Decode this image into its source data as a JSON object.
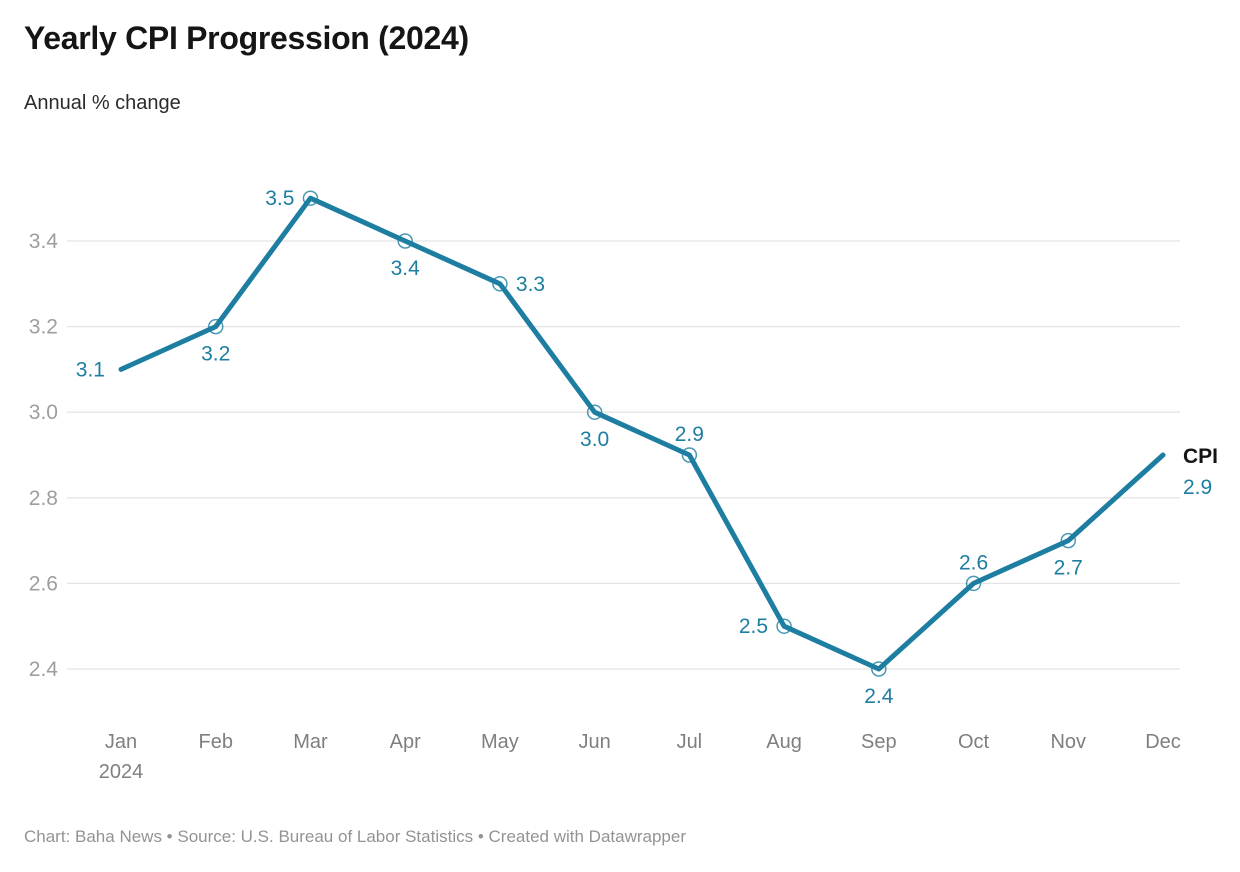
{
  "header": {
    "title": "Yearly CPI Progression (2024)",
    "subtitle": "Annual % change"
  },
  "footer": {
    "text": "Chart: Baha News • Source: U.S. Bureau of Labor Statistics • Created with Datawrapper"
  },
  "colors": {
    "background": "#ffffff",
    "title": "#151515",
    "subtitle": "#2b2b2b",
    "footer": "#939393",
    "line": "#1d7ea1",
    "point_label": "#1d7ea1",
    "grid": "#e4e4e4",
    "y_tick_text": "#9e9e9e",
    "x_tick_text": "#7f7f7f",
    "series_label_text": "#141414"
  },
  "chart_data": {
    "type": "line",
    "title": "Yearly CPI Progression (2024)",
    "subtitle": "Annual % change",
    "categories": [
      "Jan",
      "Feb",
      "Mar",
      "Apr",
      "May",
      "Jun",
      "Jul",
      "Aug",
      "Sep",
      "Oct",
      "Nov",
      "Dec"
    ],
    "first_tick_year": "2024",
    "series": [
      {
        "name": "CPI",
        "values": [
          3.1,
          3.2,
          3.5,
          3.4,
          3.3,
          3.0,
          2.9,
          2.5,
          2.4,
          2.6,
          2.7,
          2.9
        ]
      }
    ],
    "point_labels": [
      "3.1",
      "3.2",
      "3.5",
      "3.4",
      "3.3",
      "3.0",
      "2.9",
      "2.5",
      "2.4",
      "2.6",
      "2.7",
      "2.9"
    ],
    "point_label_placements": [
      "left",
      "below",
      "left",
      "below",
      "right",
      "below",
      "above",
      "left",
      "below",
      "above",
      "below",
      "end"
    ],
    "end_label": {
      "series": "CPI",
      "value": "2.9"
    },
    "xlabel": "",
    "ylabel": "",
    "y_ticks": [
      3.4,
      3.2,
      3.0,
      2.8,
      2.6,
      2.4
    ],
    "ylim": [
      2.3,
      3.55
    ],
    "grid": "horizontal",
    "markers": "open-circle",
    "legend_position": "end-of-line"
  }
}
